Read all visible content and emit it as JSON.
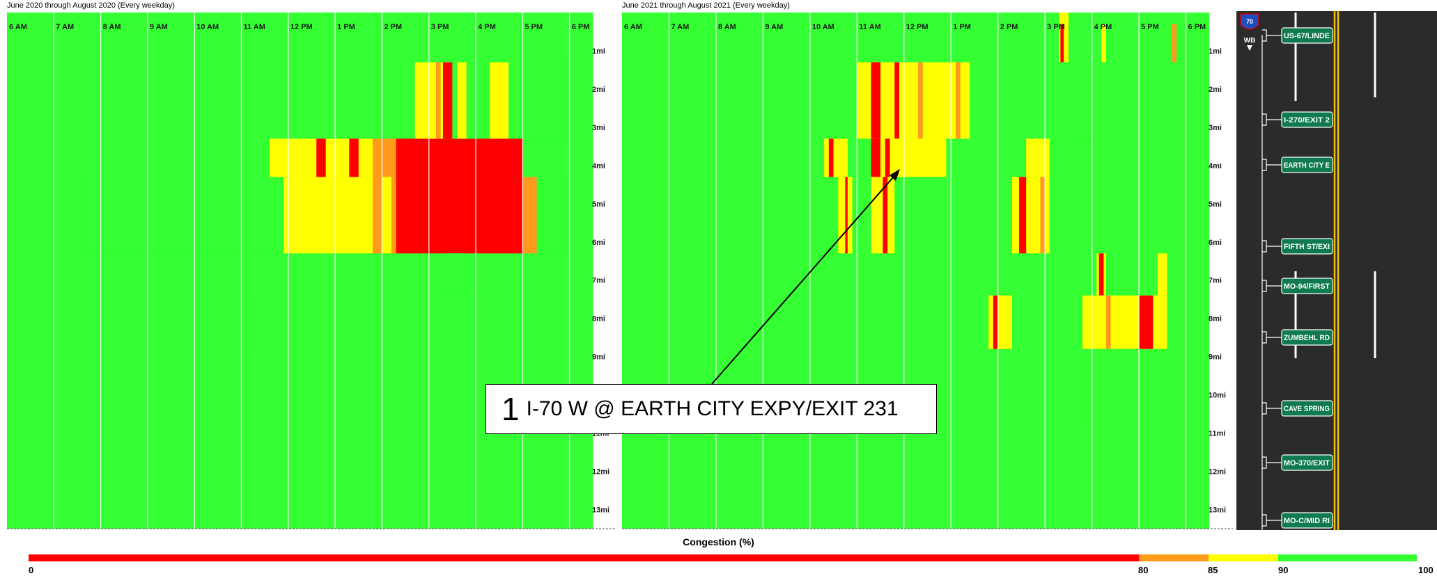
{
  "panels": [
    {
      "title": "June 2020 through August 2020 (Every weekday)"
    },
    {
      "title": "June 2021 through August 2021 (Every weekday)"
    }
  ],
  "time_labels": [
    "6 AM",
    "7 AM",
    "8 AM",
    "9 AM",
    "10 AM",
    "11 AM",
    "12 PM",
    "1 PM",
    "2 PM",
    "3 PM",
    "4 PM",
    "5 PM",
    "6 PM"
  ],
  "mile_labels": [
    "1mi",
    "2mi",
    "3mi",
    "4mi",
    "5mi",
    "6mi",
    "7mi",
    "8mi",
    "9mi",
    "10mi",
    "11mi",
    "12mi",
    "13mi"
  ],
  "callout": {
    "number": "1",
    "text": "I-70 W @ EARTH CITY EXPY/EXIT 231"
  },
  "road": {
    "shield": "70",
    "direction": "WB",
    "exits": [
      "US-67/LINDE",
      "I-270/EXIT 2",
      "EARTH CITY E",
      "FIFTH ST/EXI",
      "MO-94/FIRST",
      "ZUMBEHL RD",
      "CAVE SPRING",
      "MO-370/EXIT",
      "MO-C/MID RI"
    ],
    "colors": {
      "road": "#2b2b2b",
      "sign": "#0f7a4f",
      "center_line": "#f2c200"
    }
  },
  "legend": {
    "title": "Congestion (%)",
    "ticks": [
      "0",
      "80",
      "85",
      "90",
      "100"
    ]
  },
  "colors": {
    "green": "#33ff33",
    "deep_green": "#00e000",
    "yellow": "#ffff00",
    "orange": "#ff9a1a",
    "red": "#ff0000"
  },
  "chart_data": [
    {
      "type": "heatmap",
      "title": "June 2020 through August 2020 (Every weekday)",
      "x_range": [
        "6 AM",
        "6:30 PM"
      ],
      "y_range": [
        "0mi",
        "13.5mi"
      ],
      "scale": "Congestion (%)",
      "bands": [
        {
          "from": 0,
          "to": 80,
          "color": "red"
        },
        {
          "from": 80,
          "to": 85,
          "color": "orange"
        },
        {
          "from": 85,
          "to": 90,
          "color": "yellow"
        },
        {
          "from": 90,
          "to": 100,
          "color": "green"
        }
      ],
      "default_congestion": 95,
      "cells": [
        {
          "t0": 6.0,
          "t1": 18.5,
          "m0": 0,
          "m1": 13.5,
          "c": 95
        },
        {
          "t0": 7.6,
          "t1": 11.7,
          "m0": 4.3,
          "m1": 6.3,
          "c": 91
        },
        {
          "t0": 17.4,
          "t1": 17.9,
          "m0": 4.3,
          "m1": 6.3,
          "c": 91
        },
        {
          "t0": 11.6,
          "t1": 12.0,
          "m0": 3.3,
          "m1": 4.3,
          "c": 88
        },
        {
          "t0": 11.9,
          "t1": 13.8,
          "m0": 3.3,
          "m1": 6.3,
          "c": 87
        },
        {
          "t0": 13.8,
          "t1": 14.3,
          "m0": 3.3,
          "m1": 6.3,
          "c": 83
        },
        {
          "t0": 14.3,
          "t1": 17.0,
          "m0": 3.3,
          "m1": 6.3,
          "c": 50
        },
        {
          "t0": 17.0,
          "t1": 17.3,
          "m0": 4.3,
          "m1": 6.3,
          "c": 83
        },
        {
          "t0": 12.6,
          "t1": 12.8,
          "m0": 3.3,
          "m1": 4.3,
          "c": 50
        },
        {
          "t0": 13.3,
          "t1": 13.5,
          "m0": 3.3,
          "m1": 4.3,
          "c": 50
        },
        {
          "t0": 14.0,
          "t1": 14.2,
          "m0": 4.3,
          "m1": 6.3,
          "c": 88
        },
        {
          "t0": 14.7,
          "t1": 16.0,
          "m0": 1.3,
          "m1": 3.3,
          "c": 88
        },
        {
          "t0": 15.3,
          "t1": 15.5,
          "m0": 1.3,
          "m1": 3.3,
          "c": 50
        },
        {
          "t0": 15.15,
          "t1": 15.25,
          "m0": 1.3,
          "m1": 3.3,
          "c": 83
        },
        {
          "t0": 15.5,
          "t1": 15.6,
          "m0": 1.3,
          "m1": 3.3,
          "c": 91
        },
        {
          "t0": 15.8,
          "t1": 16.1,
          "m0": 1.3,
          "m1": 3.3,
          "c": 91
        },
        {
          "t0": 16.3,
          "t1": 16.7,
          "m0": 1.3,
          "m1": 3.3,
          "c": 88
        },
        {
          "t0": 16.7,
          "t1": 17.9,
          "m0": 1.3,
          "m1": 3.3,
          "c": 91
        },
        {
          "t0": 15.3,
          "t1": 15.8,
          "m0": 6.3,
          "m1": 7.4,
          "c": 91
        },
        {
          "t0": 11.2,
          "t1": 11.3,
          "m0": 7.4,
          "m1": 8.8,
          "c": 91
        }
      ]
    },
    {
      "type": "heatmap",
      "title": "June 2021 through August 2021 (Every weekday)",
      "x_range": [
        "6 AM",
        "6:30 PM"
      ],
      "y_range": [
        "0mi",
        "13.5mi"
      ],
      "scale": "Congestion (%)",
      "bands": [
        {
          "from": 0,
          "to": 80,
          "color": "red"
        },
        {
          "from": 80,
          "to": 85,
          "color": "orange"
        },
        {
          "from": 85,
          "to": 90,
          "color": "yellow"
        },
        {
          "from": 90,
          "to": 100,
          "color": "green"
        }
      ],
      "default_congestion": 95,
      "cells": [
        {
          "t0": 6.0,
          "t1": 18.5,
          "m0": 0,
          "m1": 13.5,
          "c": 95
        },
        {
          "t0": 11.0,
          "t1": 13.4,
          "m0": 1.3,
          "m1": 3.3,
          "c": 87
        },
        {
          "t0": 11.3,
          "t1": 11.5,
          "m0": 1.3,
          "m1": 3.3,
          "c": 50
        },
        {
          "t0": 11.8,
          "t1": 11.9,
          "m0": 1.3,
          "m1": 3.3,
          "c": 50
        },
        {
          "t0": 12.3,
          "t1": 12.4,
          "m0": 1.3,
          "m1": 3.3,
          "c": 83
        },
        {
          "t0": 13.1,
          "t1": 13.2,
          "m0": 1.3,
          "m1": 3.3,
          "c": 83
        },
        {
          "t0": 10.3,
          "t1": 10.8,
          "m0": 3.3,
          "m1": 4.3,
          "c": 87
        },
        {
          "t0": 10.4,
          "t1": 10.5,
          "m0": 3.3,
          "m1": 4.3,
          "c": 50
        },
        {
          "t0": 11.3,
          "t1": 12.9,
          "m0": 3.3,
          "m1": 4.3,
          "c": 87
        },
        {
          "t0": 11.3,
          "t1": 11.5,
          "m0": 3.3,
          "m1": 4.3,
          "c": 50
        },
        {
          "t0": 11.6,
          "t1": 11.7,
          "m0": 3.3,
          "m1": 4.3,
          "c": 50
        },
        {
          "t0": 10.6,
          "t1": 10.9,
          "m0": 4.3,
          "m1": 6.3,
          "c": 87
        },
        {
          "t0": 10.75,
          "t1": 10.8,
          "m0": 4.3,
          "m1": 6.3,
          "c": 50
        },
        {
          "t0": 11.3,
          "t1": 11.8,
          "m0": 4.3,
          "m1": 6.3,
          "c": 87
        },
        {
          "t0": 11.55,
          "t1": 11.65,
          "m0": 4.3,
          "m1": 6.3,
          "c": 50
        },
        {
          "t0": 14.6,
          "t1": 15.1,
          "m0": 3.3,
          "m1": 4.3,
          "c": 87
        },
        {
          "t0": 14.3,
          "t1": 15.1,
          "m0": 4.3,
          "m1": 6.3,
          "c": 87
        },
        {
          "t0": 14.45,
          "t1": 14.6,
          "m0": 4.3,
          "m1": 6.3,
          "c": 50
        },
        {
          "t0": 14.9,
          "t1": 15.0,
          "m0": 4.3,
          "m1": 6.3,
          "c": 83
        },
        {
          "t0": 15.6,
          "t1": 16.0,
          "m0": 0.3,
          "m1": 3.3,
          "c": 91
        },
        {
          "t0": 15.3,
          "t1": 15.5,
          "m0": 0.0,
          "m1": 1.3,
          "c": 87
        },
        {
          "t0": 15.33,
          "t1": 15.4,
          "m0": 0.3,
          "m1": 1.3,
          "c": 50
        },
        {
          "t0": 16.2,
          "t1": 16.3,
          "m0": 0.3,
          "m1": 1.3,
          "c": 88
        },
        {
          "t0": 16.1,
          "t1": 16.3,
          "m0": 6.3,
          "m1": 7.4,
          "c": 87
        },
        {
          "t0": 16.15,
          "t1": 16.25,
          "m0": 6.3,
          "m1": 7.4,
          "c": 50
        },
        {
          "t0": 17.4,
          "t1": 17.6,
          "m0": 6.3,
          "m1": 7.4,
          "c": 87
        },
        {
          "t0": 13.8,
          "t1": 14.3,
          "m0": 7.4,
          "m1": 8.8,
          "c": 87
        },
        {
          "t0": 13.9,
          "t1": 14.0,
          "m0": 7.4,
          "m1": 8.8,
          "c": 50
        },
        {
          "t0": 15.8,
          "t1": 17.6,
          "m0": 7.4,
          "m1": 8.8,
          "c": 87
        },
        {
          "t0": 17.0,
          "t1": 17.3,
          "m0": 7.4,
          "m1": 8.8,
          "c": 50
        },
        {
          "t0": 16.3,
          "t1": 16.4,
          "m0": 7.4,
          "m1": 8.8,
          "c": 83
        },
        {
          "t0": 15.8,
          "t1": 17.6,
          "m0": 8.8,
          "m1": 10.6,
          "c": 91
        },
        {
          "t0": 17.7,
          "t1": 17.8,
          "m0": 0.3,
          "m1": 1.3,
          "c": 83
        }
      ]
    }
  ]
}
